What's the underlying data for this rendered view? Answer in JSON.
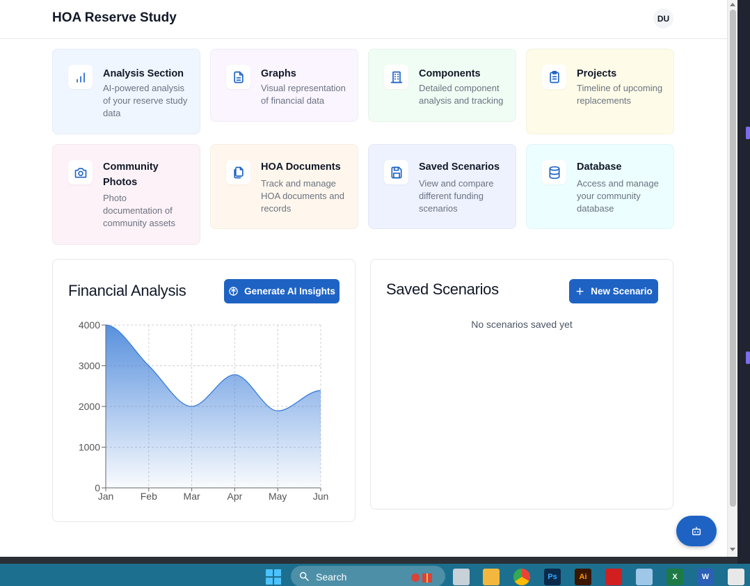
{
  "header": {
    "title": "HOA Reserve Study",
    "avatar_initials": "DU"
  },
  "cards": [
    {
      "title": "Analysis Section",
      "description": "AI-powered analysis of your reserve study data",
      "icon": "bar-chart-icon",
      "bg": "#eff6ff"
    },
    {
      "title": "Graphs",
      "description": "Visual representation of financial data",
      "icon": "document-icon",
      "bg": "#faf5ff"
    },
    {
      "title": "Components",
      "description": "Detailed component analysis and tracking",
      "icon": "building-icon",
      "bg": "#f0fdf4"
    },
    {
      "title": "Projects",
      "description": "Timeline of upcoming replacements",
      "icon": "clipboard-icon",
      "bg": "#fefce8"
    },
    {
      "title": "Community Photos",
      "description": "Photo documentation of community assets",
      "icon": "camera-icon",
      "bg": "#fdf2f8"
    },
    {
      "title": "HOA Documents",
      "description": "Track and manage HOA documents and records",
      "icon": "files-icon",
      "bg": "#fff7ed"
    },
    {
      "title": "Saved Scenarios",
      "description": "View and compare different funding scenarios",
      "icon": "save-icon",
      "bg": "#eef2ff"
    },
    {
      "title": "Database",
      "description": "Access and manage your community database",
      "icon": "database-icon",
      "bg": "#ecfeff"
    }
  ],
  "financial": {
    "title": "Financial Analysis",
    "button_label": "Generate AI Insights",
    "button_icon": "brain-icon"
  },
  "scenarios": {
    "title": "Saved Scenarios",
    "button_label": "New Scenario",
    "button_icon": "plus-icon",
    "empty_message": "No scenarios saved yet"
  },
  "chart_data": {
    "type": "area",
    "categories": [
      "Jan",
      "Feb",
      "Mar",
      "Apr",
      "May",
      "Jun"
    ],
    "values": [
      4000,
      3000,
      2000,
      2780,
      1890,
      2390
    ],
    "y_ticks": [
      0,
      1000,
      2000,
      3000,
      4000
    ],
    "ylim": [
      0,
      4000
    ],
    "grid": true,
    "color": "#3b7dd8"
  },
  "fab": {
    "icon": "bot-icon"
  },
  "taskbar": {
    "search_label": "Search"
  },
  "colors": {
    "accent": "#1e63c4",
    "taskbar": "#1d6f8f"
  }
}
